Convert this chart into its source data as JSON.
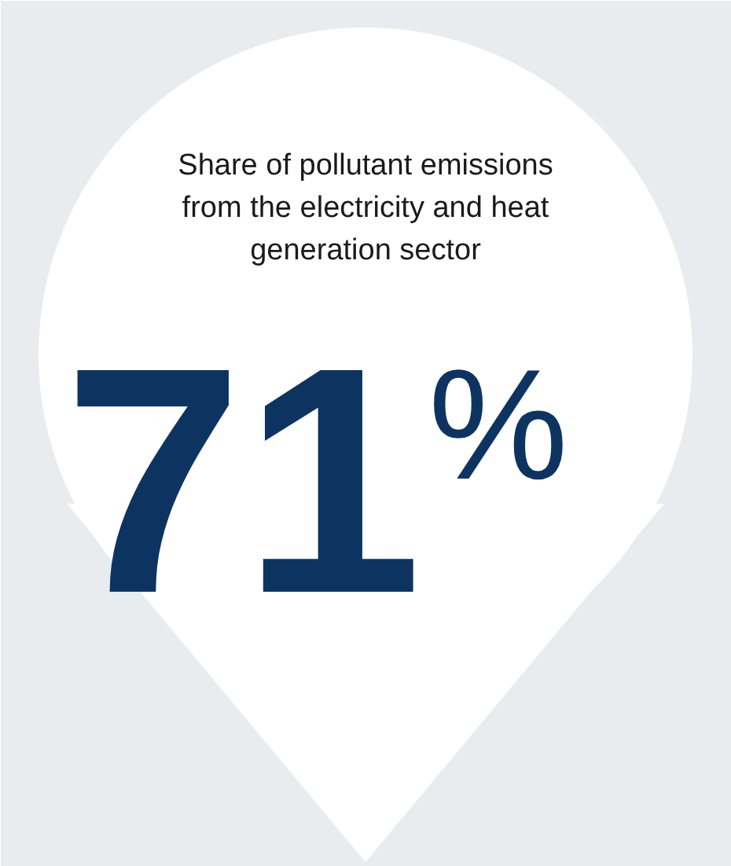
{
  "chart_data": {
    "type": "other",
    "title": "Share of pollutant emissions from the electricity and heat generation sector",
    "values": [
      71
    ],
    "value_labels": [
      "71%"
    ],
    "color": "#0d3461"
  }
}
